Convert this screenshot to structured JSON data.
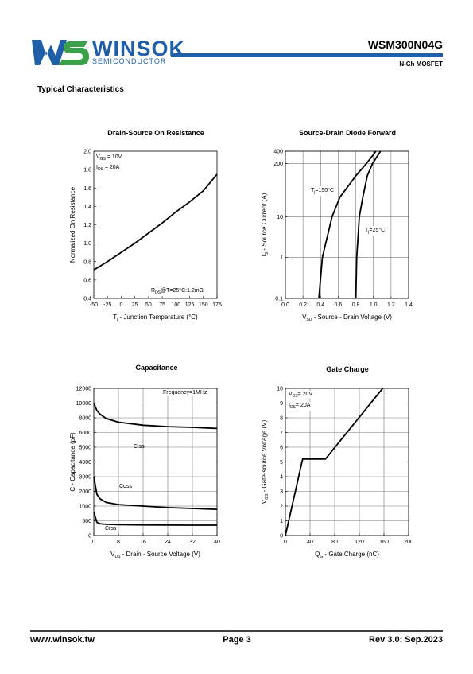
{
  "header": {
    "logo": "WINSOK",
    "logo_sub": "SEMICONDUCTOR",
    "part": "WSM300N04G",
    "device": "N-Ch MOSFET"
  },
  "section_title": "Typical Characteristics",
  "chart_data": [
    {
      "type": "line",
      "title": "Drain-Source On Resistance",
      "x_label": [
        {
          "t": "T"
        },
        {
          "t": "j",
          "sub": true
        },
        {
          "t": " - Junction Temperature (°C)"
        }
      ],
      "y_label": [
        {
          "t": "Normalized On Resistance"
        }
      ],
      "x": [
        -50,
        -25,
        0,
        25,
        50,
        75,
        100,
        125,
        150,
        175
      ],
      "series": [
        {
          "color": "#000000",
          "values": [
            0.71,
            0.8,
            0.9,
            1.0,
            1.11,
            1.22,
            1.34,
            1.45,
            1.57,
            1.75
          ]
        }
      ],
      "xlim": [
        -50,
        175
      ],
      "xticks": [
        -50,
        -25,
        0,
        25,
        50,
        75,
        100,
        125,
        150,
        175
      ],
      "ylim": [
        0.4,
        2.0
      ],
      "yticks": [
        0.4,
        0.6,
        0.8,
        {
          "value": 1,
          "label": "1.0"
        },
        1.2,
        1.4,
        1.6,
        1.8,
        {
          "value": 2,
          "label": "2.0"
        }
      ],
      "grid": false,
      "annotations": [
        [
          {
            "t": "V"
          },
          {
            "t": "GS",
            "sub": true
          },
          {
            "t": " = 10V"
          }
        ],
        [
          {
            "t": "I"
          },
          {
            "t": "DS",
            "sub": true
          },
          {
            "t": " = 20A"
          }
        ],
        [
          {
            "t": "R"
          },
          {
            "t": "DS",
            "sub": true
          },
          {
            "t": "@T=25°C:1.2mΩ"
          }
        ]
      ]
    },
    {
      "type": "line",
      "title": "Source-Drain Diode Forward",
      "x_label": [
        {
          "t": "V"
        },
        {
          "t": "SD",
          "sub": true
        },
        {
          "t": " - Source - Drain Voltage (V)"
        }
      ],
      "y_label": [
        {
          "t": "I"
        },
        {
          "t": "S",
          "sub": true
        },
        {
          "t": " - Source Current (A)"
        }
      ],
      "series": [
        {
          "label": [
            {
              "t": "T"
            },
            {
              "t": "j",
              "sub": true
            },
            {
              "t": "=150°C"
            }
          ],
          "color": "#000000",
          "x": [
            0.38,
            0.42,
            0.53,
            0.62,
            0.8,
            0.92,
            1.03
          ],
          "values": [
            0.1,
            1,
            10,
            30,
            100,
            200,
            400
          ]
        },
        {
          "label": [
            {
              "t": "T"
            },
            {
              "t": "j",
              "sub": true
            },
            {
              "t": "=25°C"
            }
          ],
          "color": "#000000",
          "x": [
            0.8,
            0.81,
            0.84,
            0.88,
            0.93,
            0.99,
            1.08
          ],
          "values": [
            0.1,
            1,
            10,
            30,
            100,
            200,
            400
          ]
        }
      ],
      "xlim": [
        0,
        1.4
      ],
      "xticks": [
        {
          "value": 0,
          "label": "0.0"
        },
        0.2,
        0.4,
        0.6,
        0.8,
        {
          "value": 1,
          "label": "1.0"
        },
        1.2,
        1.4
      ],
      "ylim": [
        0.1,
        400
      ],
      "yticks": [
        0.1,
        1,
        10,
        200,
        400
      ],
      "yscale": "log",
      "grid": true
    },
    {
      "type": "line",
      "title": "Capacitance",
      "x_label": [
        {
          "t": "V"
        },
        {
          "t": "DS",
          "sub": true
        },
        {
          "t": " - Drain - Source Voltage (V)"
        }
      ],
      "y_label": [
        {
          "t": "C - Capacitance (pF)"
        }
      ],
      "x": [
        0,
        1,
        2,
        4,
        8,
        16,
        24,
        32,
        40
      ],
      "series": [
        {
          "name": "Ciss",
          "color": "#000000",
          "values": [
            10000,
            9000,
            8500,
            7900,
            7400,
            7000,
            6800,
            6700,
            6550
          ]
        },
        {
          "name": "Coss",
          "color": "#000000",
          "values": [
            3000,
            1800,
            1500,
            1250,
            1100,
            1000,
            950,
            920,
            890
          ]
        },
        {
          "name": "Crss",
          "color": "#000000",
          "values": [
            800,
            450,
            400,
            380,
            370,
            360,
            355,
            350,
            350
          ]
        }
      ],
      "xlim": [
        0,
        40
      ],
      "xticks": [
        0,
        8,
        16,
        24,
        32,
        40
      ],
      "ylim": [
        0,
        12000
      ],
      "yticks": [
        0,
        500,
        1000,
        2000,
        3000,
        4000,
        5000,
        6000,
        8000,
        10000,
        12000
      ],
      "yscale": "piecewise",
      "grid": true,
      "annotations": [
        [
          {
            "t": "Frequency=1MHz"
          }
        ]
      ]
    },
    {
      "type": "line",
      "title": "Gate Charge",
      "x_label": [
        {
          "t": "Q"
        },
        {
          "t": "G",
          "sub": true
        },
        {
          "t": " - Gate Charge (nC)"
        }
      ],
      "y_label": [
        {
          "t": "V"
        },
        {
          "t": "GS",
          "sub": true
        },
        {
          "t": " - Gate-source Voltage (V)"
        }
      ],
      "x": [
        0,
        28,
        65,
        158
      ],
      "series": [
        {
          "color": "#000000",
          "values": [
            0,
            5.2,
            5.2,
            10
          ]
        }
      ],
      "xlim": [
        0,
        200
      ],
      "xticks": [
        0,
        40,
        80,
        120,
        160,
        200
      ],
      "ylim": [
        0,
        10
      ],
      "yticks": [
        0,
        1,
        2,
        3,
        4,
        5,
        6,
        7,
        8,
        9,
        10
      ],
      "grid": true,
      "annotations": [
        [
          {
            "t": "V"
          },
          {
            "t": "DS",
            "sub": true
          },
          {
            "t": "= 20V"
          }
        ],
        [
          {
            "t": "I"
          },
          {
            "t": "DS",
            "sub": true
          },
          {
            "t": "= 20A"
          }
        ]
      ]
    }
  ],
  "footer": {
    "left": "www.winsok.tw",
    "center": "Page 3",
    "right": "Rev 3.0: Sep.2023"
  }
}
